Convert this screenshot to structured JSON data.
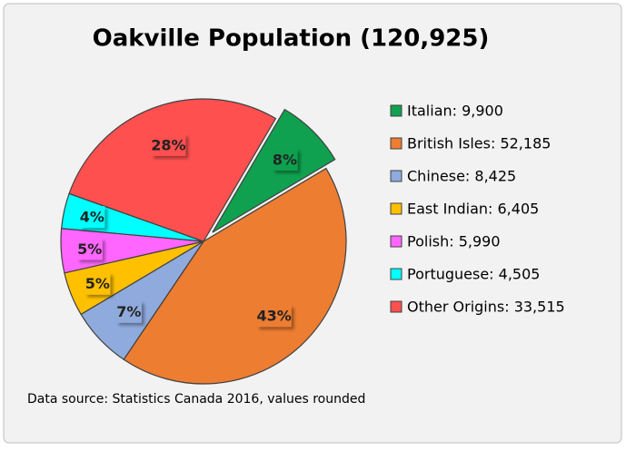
{
  "chart_data": {
    "type": "pie",
    "title": "Oakville Population (120,925)",
    "categories": [
      "Italian: 9,900",
      "British Isles: 52,185",
      "Chinese: 8,425",
      "East Indian: 6,405",
      "Polish: 5,990",
      "Portuguese: 4,505",
      "Other Origins: 33,515"
    ],
    "values": [
      8,
      43,
      7,
      5,
      5,
      4,
      28
    ],
    "value_labels": [
      "8%",
      "43%",
      "7%",
      "5%",
      "5%",
      "4%",
      "28%"
    ],
    "colors": [
      "#0fa14f",
      "#ed7d31",
      "#8faadc",
      "#ffc000",
      "#ff66ff",
      "#00ffff",
      "#ff5050"
    ],
    "exploded": [
      true,
      false,
      false,
      false,
      false,
      false,
      false
    ],
    "legend": "right",
    "note": "Data source: Statistics Canada 2016, values rounded"
  }
}
